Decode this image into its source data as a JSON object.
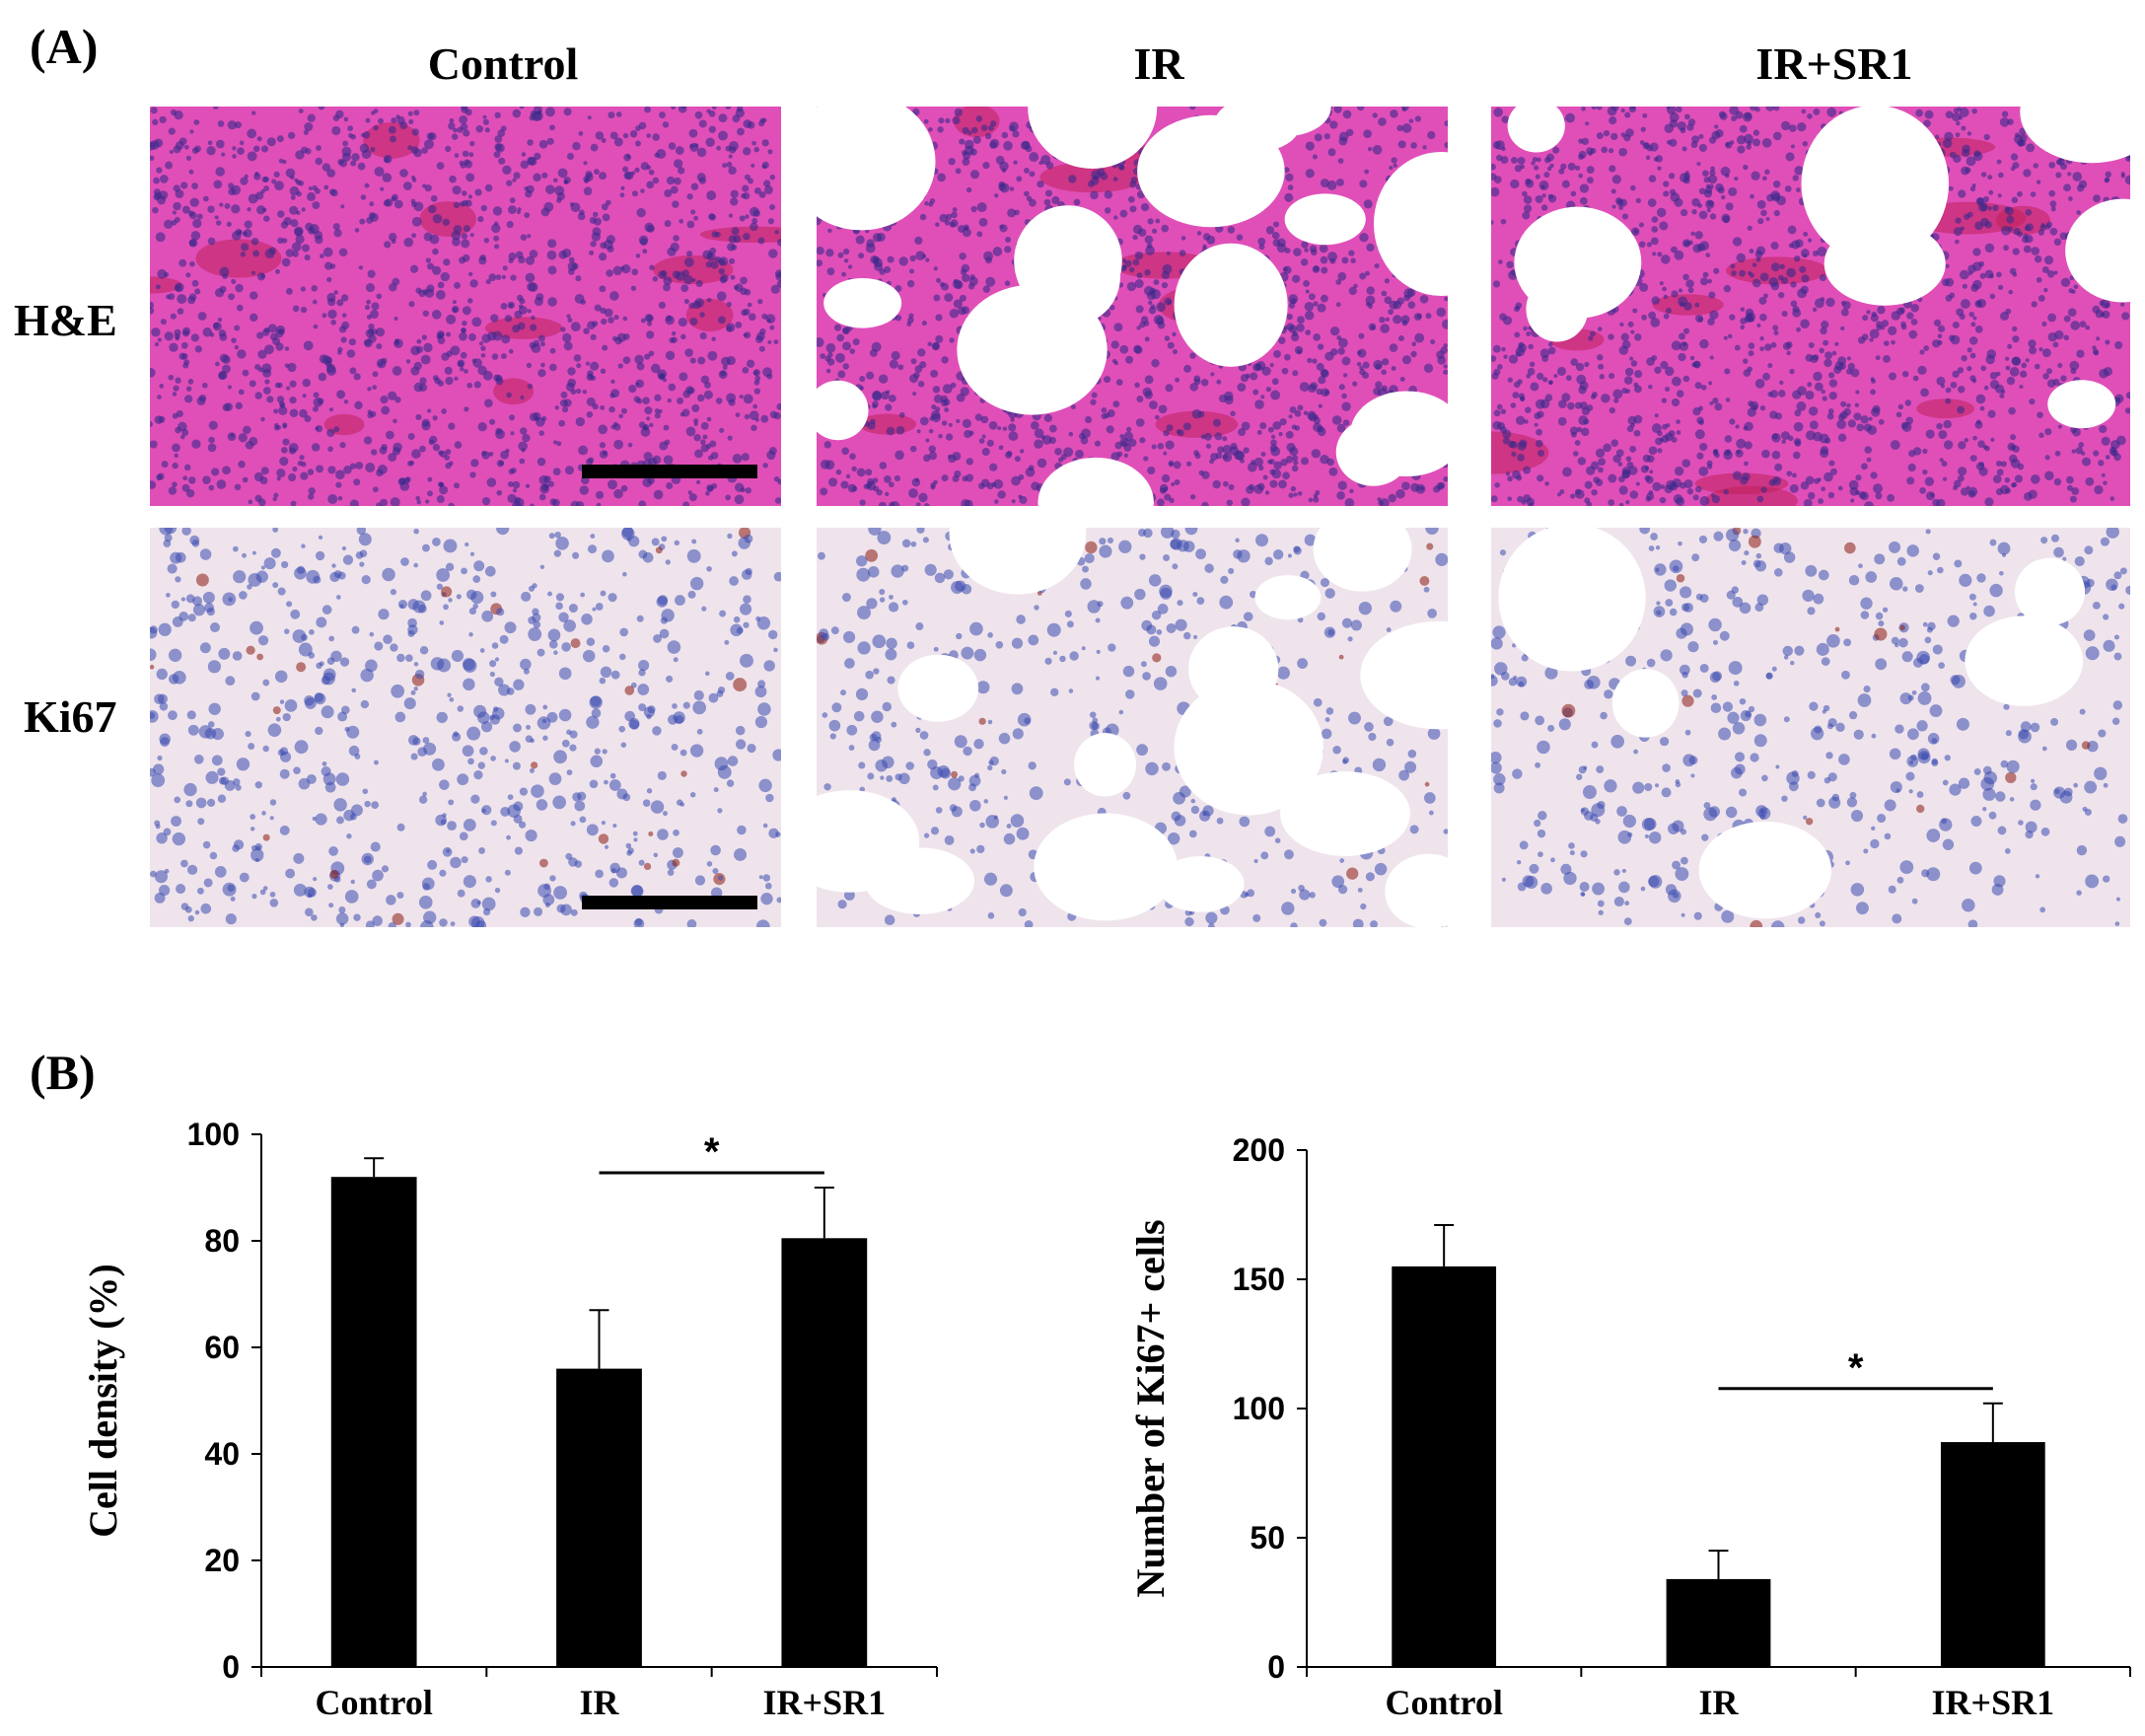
{
  "panel_a": {
    "label": "(A)",
    "columns": [
      "Control",
      "IR",
      "IR+SR1"
    ],
    "rows": [
      "H&E",
      "Ki67"
    ]
  },
  "panel_b": {
    "label": "(B)"
  },
  "colors": {
    "he_background": "#e04fb8",
    "he_nuclei": "#3a2a8a",
    "he_vessel": "#c0205a",
    "ki67_background": "#efe4ec",
    "ki67_nuclei": "#3a4ab0",
    "ki67_positive": "#8a1a10",
    "bar": "#000000"
  },
  "chart_data": [
    {
      "type": "bar",
      "categories": [
        "Control",
        "IR",
        "IR+SR1"
      ],
      "values": [
        92,
        56,
        80.5
      ],
      "errors": [
        3.5,
        11,
        9.5
      ],
      "xlabel": "",
      "ylabel": "Cell density (%)",
      "ylim": [
        0,
        100
      ],
      "yticks": [
        "0",
        "20",
        "40",
        "60",
        "80",
        "100"
      ],
      "significance": {
        "from": "IR",
        "to": "IR+SR1",
        "label": "*"
      },
      "grid": false
    },
    {
      "type": "bar",
      "categories": [
        "Control",
        "IR",
        "IR+SR1"
      ],
      "values": [
        155,
        34,
        87
      ],
      "errors": [
        16,
        11,
        15
      ],
      "xlabel": "",
      "ylabel": "Number of Ki67+ cells",
      "ylim": [
        0,
        200
      ],
      "yticks": [
        "0",
        "50",
        "100",
        "150",
        "200"
      ],
      "significance": {
        "from": "IR",
        "to": "IR+SR1",
        "label": "*"
      },
      "grid": false
    }
  ]
}
